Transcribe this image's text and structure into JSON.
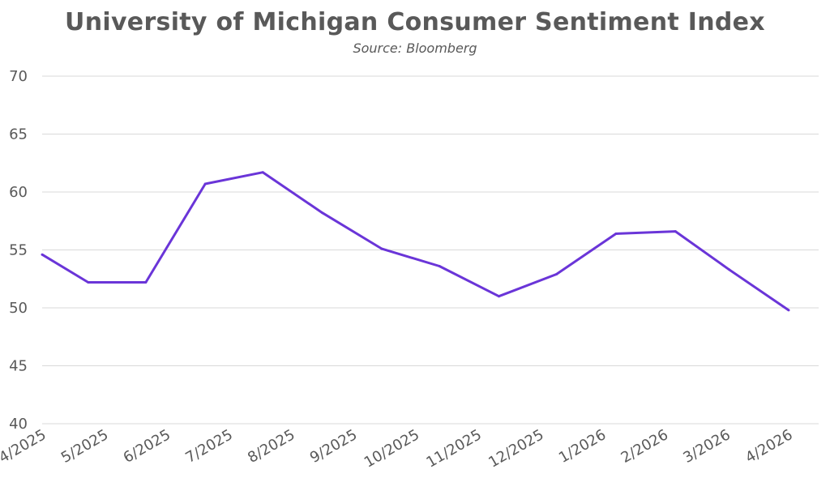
{
  "chart_data": {
    "type": "line",
    "title": "University of Michigan Consumer Sentiment Index",
    "subtitle": "Source: Bloomberg",
    "xlabel": "",
    "ylabel": "",
    "categories": [
      "4/2025",
      "5/2025",
      "6/2025",
      "7/2025",
      "8/2025",
      "9/2025",
      "10/2025",
      "11/2025",
      "12/2025",
      "1/2026",
      "2/2026",
      "3/2026",
      "4/2026"
    ],
    "x": [
      "4/1/2025",
      "4/25/2025",
      "5/25/2025",
      "6/25/2025",
      "7/25/2025",
      "8/25/2025",
      "9/25/2025",
      "10/25/2025",
      "11/25/2025",
      "12/25/2025",
      "1/25/2026",
      "2/25/2026",
      "3/25/2026",
      "4/25/2026"
    ],
    "series": [
      {
        "values": [
          54.6,
          52.2,
          52.2,
          60.7,
          61.7,
          58.2,
          55.1,
          53.6,
          51.0,
          52.9,
          56.4,
          56.6,
          53.3,
          49.8
        ],
        "color": "#6a35d8"
      }
    ],
    "ylim": [
      40,
      70
    ],
    "yticks": [
      40,
      45,
      50,
      55,
      60,
      65,
      70
    ],
    "grid": true,
    "legend": "none"
  }
}
